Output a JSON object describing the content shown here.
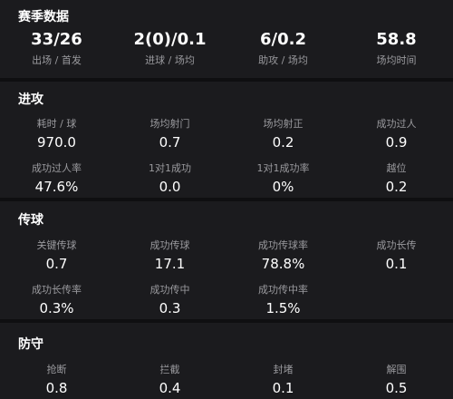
{
  "season": {
    "title": "赛季数据",
    "items": [
      {
        "value": "33/26",
        "label": "出场 / 首发"
      },
      {
        "value": "2(0)/0.1",
        "label": "进球 / 场均"
      },
      {
        "value": "6/0.2",
        "label": "助攻 / 场均"
      },
      {
        "value": "58.8",
        "label": "场均时间"
      }
    ]
  },
  "attack": {
    "title": "进攻",
    "rows": [
      [
        {
          "label": "耗时 / 球",
          "value": "970.0"
        },
        {
          "label": "场均射门",
          "value": "0.7"
        },
        {
          "label": "场均射正",
          "value": "0.2"
        },
        {
          "label": "成功过人",
          "value": "0.9"
        }
      ],
      [
        {
          "label": "成功过人率",
          "value": "47.6%"
        },
        {
          "label": "1对1成功",
          "value": "0.0"
        },
        {
          "label": "1对1成功率",
          "value": "0%"
        },
        {
          "label": "越位",
          "value": "0.2"
        }
      ]
    ]
  },
  "passing": {
    "title": "传球",
    "rows": [
      [
        {
          "label": "关键传球",
          "value": "0.7"
        },
        {
          "label": "成功传球",
          "value": "17.1"
        },
        {
          "label": "成功传球率",
          "value": "78.8%"
        },
        {
          "label": "成功长传",
          "value": "0.1"
        }
      ],
      [
        {
          "label": "成功长传率",
          "value": "0.3%"
        },
        {
          "label": "成功传中",
          "value": "0.3"
        },
        {
          "label": "成功传中率",
          "value": "1.5%"
        }
      ]
    ]
  },
  "defense": {
    "title": "防守",
    "rows": [
      [
        {
          "label": "抢断",
          "value": "0.8"
        },
        {
          "label": "拦截",
          "value": "0.4"
        },
        {
          "label": "封堵",
          "value": "0.1"
        },
        {
          "label": "解围",
          "value": "0.5"
        }
      ]
    ]
  }
}
